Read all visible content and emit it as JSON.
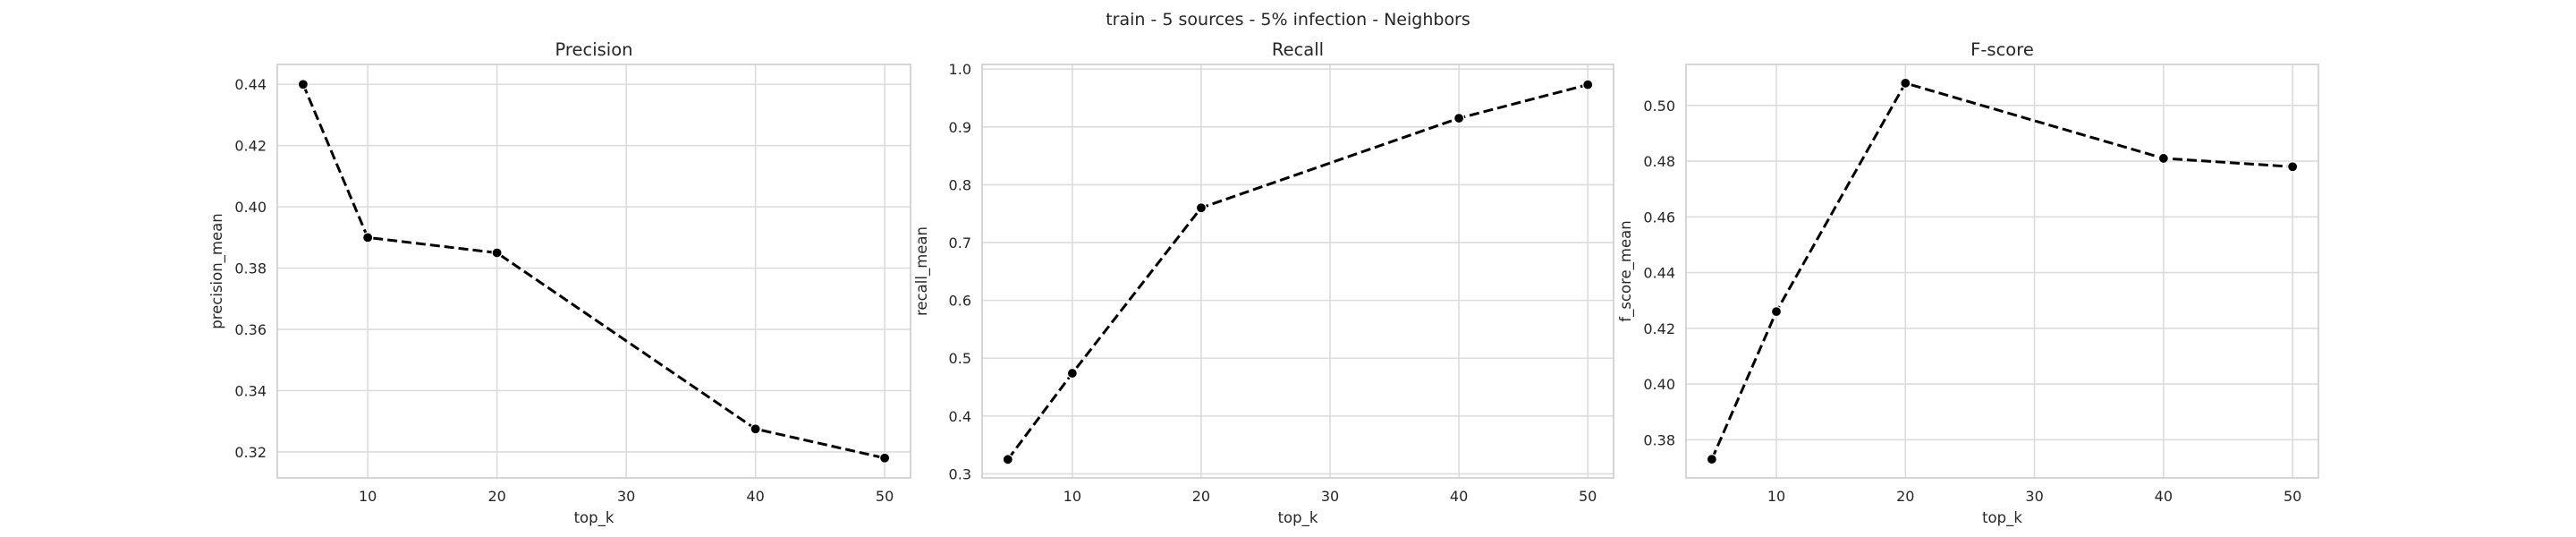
{
  "figure": {
    "suptitle": "train - 5 sources - 5% infection - Neighbors"
  },
  "chart_data": [
    {
      "type": "line",
      "title": "Precision",
      "xlabel": "top_k",
      "ylabel": "precision_mean",
      "x": [
        5,
        10,
        20,
        40,
        50
      ],
      "y": [
        0.44,
        0.39,
        0.385,
        0.3275,
        0.318
      ],
      "xlim": [
        3,
        52
      ],
      "ylim": [
        0.3115,
        0.4465
      ],
      "xticks": [
        10,
        20,
        30,
        40,
        50
      ],
      "xtick_labels": [
        "10",
        "20",
        "30",
        "40",
        "50"
      ],
      "yticks": [
        0.32,
        0.34,
        0.36,
        0.38,
        0.4,
        0.42,
        0.44
      ],
      "ytick_labels": [
        "0.32",
        "0.34",
        "0.36",
        "0.38",
        "0.40",
        "0.42",
        "0.44"
      ],
      "grid": true,
      "line_style": "dashed",
      "marker": "circle",
      "color": "#000000"
    },
    {
      "type": "line",
      "title": "Recall",
      "xlabel": "top_k",
      "ylabel": "recall_mean",
      "x": [
        5,
        10,
        20,
        40,
        50
      ],
      "y": [
        0.325,
        0.474,
        0.76,
        0.915,
        0.973
      ],
      "xlim": [
        3,
        52
      ],
      "ylim": [
        0.293,
        1.008
      ],
      "xticks": [
        10,
        20,
        30,
        40,
        50
      ],
      "xtick_labels": [
        "10",
        "20",
        "30",
        "40",
        "50"
      ],
      "yticks": [
        0.3,
        0.4,
        0.5,
        0.6,
        0.7,
        0.8,
        0.9,
        1.0
      ],
      "ytick_labels": [
        "0.3",
        "0.4",
        "0.5",
        "0.6",
        "0.7",
        "0.8",
        "0.9",
        "1.0"
      ],
      "grid": true,
      "line_style": "dashed",
      "marker": "circle",
      "color": "#000000"
    },
    {
      "type": "line",
      "title": "F-score",
      "xlabel": "top_k",
      "ylabel": "f_score_mean",
      "x": [
        5,
        10,
        20,
        40,
        50
      ],
      "y": [
        0.373,
        0.426,
        0.508,
        0.481,
        0.478
      ],
      "xlim": [
        3,
        52
      ],
      "ylim": [
        0.3663,
        0.5147
      ],
      "xticks": [
        10,
        20,
        30,
        40,
        50
      ],
      "xtick_labels": [
        "10",
        "20",
        "30",
        "40",
        "50"
      ],
      "yticks": [
        0.38,
        0.4,
        0.42,
        0.44,
        0.46,
        0.48,
        0.5
      ],
      "ytick_labels": [
        "0.38",
        "0.40",
        "0.42",
        "0.44",
        "0.46",
        "0.48",
        "0.50"
      ],
      "grid": true,
      "line_style": "dashed",
      "marker": "circle",
      "color": "#000000"
    }
  ]
}
